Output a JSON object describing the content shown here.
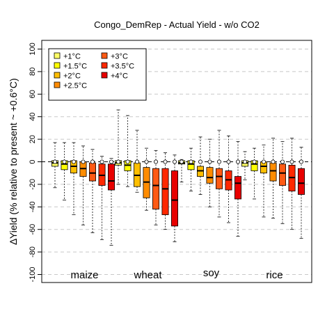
{
  "chart_data": {
    "type": "box",
    "title": "Congo_DemRep - Actual Yield - w/o CO2",
    "ylabel": "∆Yield (% relative to present ~ +0.6°C)",
    "ylim": [
      -105,
      105
    ],
    "yticks": [
      -100,
      -80,
      -60,
      -40,
      -20,
      0,
      20,
      40,
      60,
      80,
      100
    ],
    "grid": "horizontal dashed every 20",
    "legend_position": "top-left",
    "warming_levels": [
      "+1°C",
      "+1.5°C",
      "+2°C",
      "+2.5°C",
      "+3°C",
      "+3.5°C",
      "+4°C"
    ],
    "colors": [
      "#ffff66",
      "#ffff00",
      "#ffbf00",
      "#ff8c00",
      "#ff5a14",
      "#ff2800",
      "#e80000"
    ],
    "crops": [
      {
        "name": "maize",
        "boxes": [
          {
            "wmin": -23,
            "q1": -4,
            "median": -1,
            "q3": 1,
            "wmax": 17
          },
          {
            "wmin": -34,
            "q1": -7,
            "median": -2,
            "q3": 1,
            "wmax": 17
          },
          {
            "wmin": -47,
            "q1": -10,
            "median": -4,
            "q3": 1,
            "wmax": 17
          },
          {
            "wmin": -56,
            "q1": -13,
            "median": -6,
            "q3": 0,
            "wmax": 14
          },
          {
            "wmin": -63,
            "q1": -17,
            "median": -10,
            "q3": -1,
            "wmax": 11
          },
          {
            "wmin": -69,
            "q1": -21,
            "median": -12,
            "q3": -2,
            "wmax": 5
          },
          {
            "wmin": -74,
            "q1": -25,
            "median": -17,
            "q3": -2,
            "wmax": 3
          }
        ]
      },
      {
        "name": "wheat",
        "boxes": [
          {
            "wmin": -20,
            "q1": -3,
            "median": -1,
            "q3": 1,
            "wmax": 46
          },
          {
            "wmin": -22,
            "q1": -8,
            "median": -3,
            "q3": 1,
            "wmax": 41
          },
          {
            "wmin": -27,
            "q1": -22,
            "median": -12,
            "q3": -1,
            "wmax": 28
          },
          {
            "wmin": -43,
            "q1": -32,
            "median": -18,
            "q3": -5,
            "wmax": 12
          },
          {
            "wmin": -56,
            "q1": -42,
            "median": -21,
            "q3": -6,
            "wmax": 10
          },
          {
            "wmin": -60,
            "q1": -47,
            "median": -24,
            "q3": -6,
            "wmax": 8
          },
          {
            "wmin": -71,
            "q1": -57,
            "median": -34,
            "q3": -8,
            "wmax": 6
          }
        ]
      },
      {
        "name": "soy",
        "boxes": [
          {
            "wmin": -18,
            "q1": -2,
            "median": -1,
            "q3": 1,
            "wmax": 2
          },
          {
            "wmin": -26,
            "q1": -7,
            "median": -2,
            "q3": 1,
            "wmax": 12
          },
          {
            "wmin": -29,
            "q1": -13,
            "median": -8,
            "q3": -4,
            "wmax": 22
          },
          {
            "wmin": -40,
            "q1": -19,
            "median": -14,
            "q3": -5,
            "wmax": 20
          },
          {
            "wmin": -49,
            "q1": -24,
            "median": -13,
            "q3": -6,
            "wmax": 28
          },
          {
            "wmin": -54,
            "q1": -25,
            "median": -16,
            "q3": -8,
            "wmax": 23
          },
          {
            "wmin": -66,
            "q1": -33,
            "median": -19,
            "q3": -13,
            "wmax": 18
          }
        ]
      },
      {
        "name": "rice",
        "boxes": [
          {
            "wmin": -16,
            "q1": -4,
            "median": -1,
            "q3": 1,
            "wmax": 9
          },
          {
            "wmin": -33,
            "q1": -8,
            "median": -2,
            "q3": 1,
            "wmax": 12
          },
          {
            "wmin": -49,
            "q1": -10,
            "median": -4,
            "q3": 0,
            "wmax": 15
          },
          {
            "wmin": -50,
            "q1": -17,
            "median": -8,
            "q3": -1,
            "wmax": 21
          },
          {
            "wmin": -55,
            "q1": -21,
            "median": -10,
            "q3": -2,
            "wmax": 18
          },
          {
            "wmin": -60,
            "q1": -26,
            "median": -14,
            "q3": -3,
            "wmax": 21
          },
          {
            "wmin": -68,
            "q1": -29,
            "median": -19,
            "q3": -6,
            "wmax": 13
          }
        ]
      }
    ]
  }
}
